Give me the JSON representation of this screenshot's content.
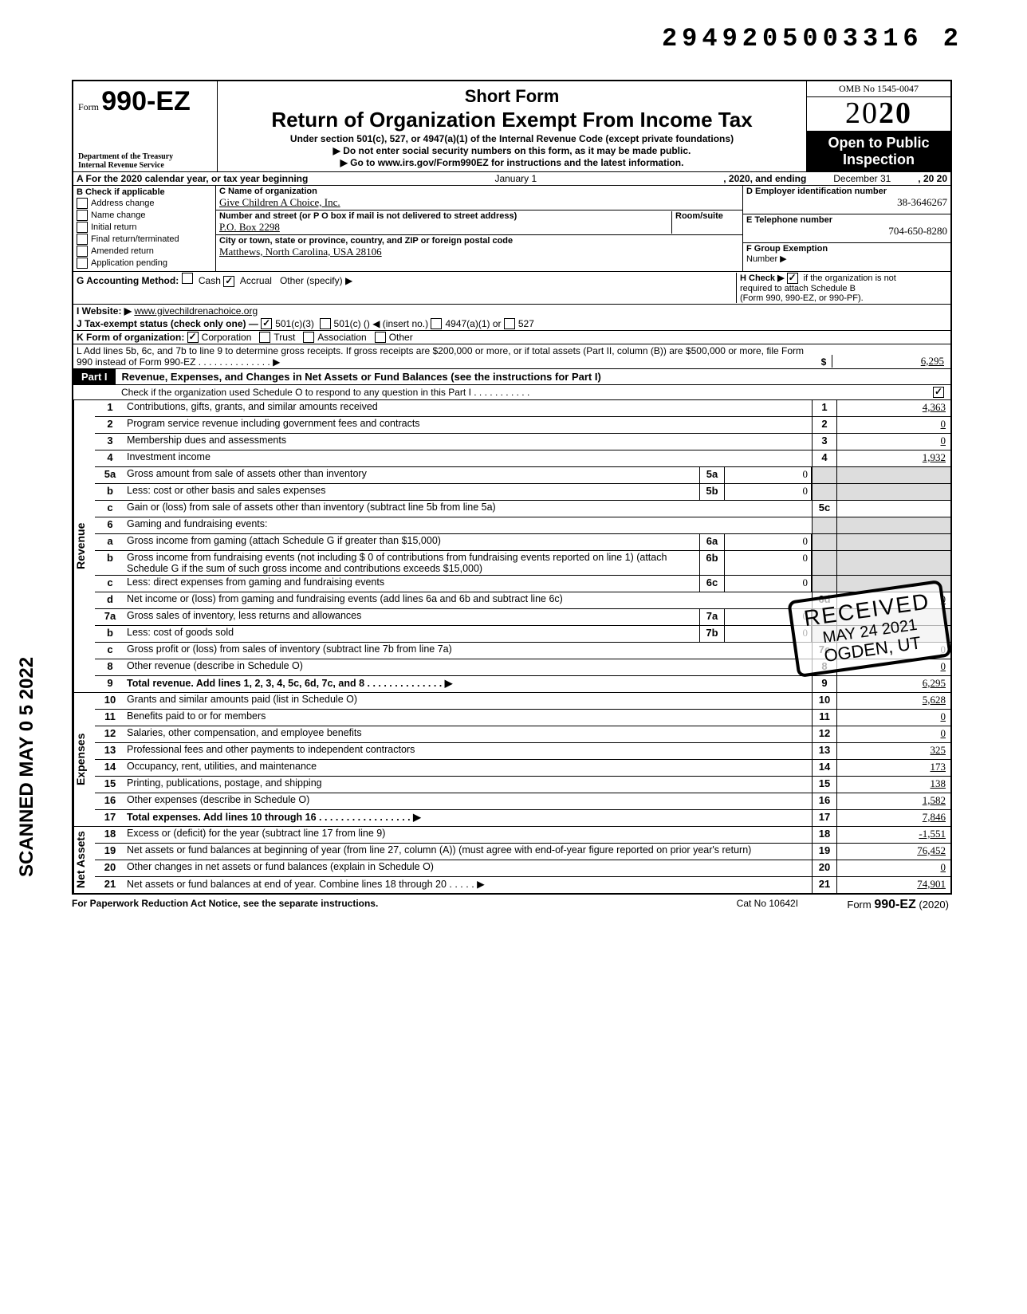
{
  "doc_number": "2949205003316  2",
  "scanned_stamp": "SCANNED MAY 0 5 2022",
  "header": {
    "form_prefix": "Form",
    "form_number": "990-EZ",
    "dept1": "Department of the Treasury",
    "dept2": "Internal Revenue Service",
    "short_form": "Short Form",
    "title": "Return of Organization Exempt From Income Tax",
    "subtitle": "Under section 501(c), 527, or 4947(a)(1) of the Internal Revenue Code (except private foundations)",
    "instr1": "▶ Do not enter social security numbers on this form, as it may be made public.",
    "instr2": "▶ Go to www.irs.gov/Form990EZ for instructions and the latest information.",
    "omb": "OMB No  1545-0047",
    "year_prefix": "20",
    "year_bold": "20",
    "open_public1": "Open to Public",
    "open_public2": "Inspection"
  },
  "rowA": {
    "label_pre": "A  For the 2020 calendar year, or tax year beginning",
    "begin": "January 1",
    "mid": ", 2020, and ending",
    "end": "December 31",
    "tail": ", 20   20"
  },
  "rowB": {
    "header": "B  Check if applicable",
    "opts": [
      "Address change",
      "Name change",
      "Initial return",
      "Final return/terminated",
      "Amended return",
      "Application pending"
    ]
  },
  "rowC": {
    "name_label": "C  Name of organization",
    "name": "Give Children A Choice, Inc.",
    "addr_label": "Number and street (or P O  box if mail is not delivered to street address)",
    "room_label": "Room/suite",
    "addr": "P.O. Box 2298",
    "city_label": "City or town, state or province, country, and ZIP or foreign postal code",
    "city": "Matthews, North Carolina, USA 28106"
  },
  "rowD": {
    "label": "D Employer identification number",
    "value": "38-3646267"
  },
  "rowE": {
    "label": "E  Telephone number",
    "value": "704-650-8280"
  },
  "rowF": {
    "label": "F  Group Exemption",
    "label2": "Number ▶"
  },
  "rowG": {
    "label": "G  Accounting Method:",
    "cash": "Cash",
    "accrual": "Accrual",
    "other": "Other (specify) ▶"
  },
  "rowH": {
    "text1": "H  Check ▶",
    "text2": "if the organization is not",
    "text3": "required to attach Schedule B",
    "text4": "(Form 990, 990-EZ, or 990-PF)."
  },
  "rowI": {
    "label": "I   Website: ▶",
    "value": "www.givechildrenachoice.org"
  },
  "rowJ": {
    "label": "J  Tax-exempt status (check only one) —",
    "o1": "501(c)(3)",
    "o2": "501(c) (",
    "o2b": ") ◀ (insert no.)",
    "o3": "4947(a)(1) or",
    "o4": "527"
  },
  "rowK": {
    "label": "K  Form of organization:",
    "o1": "Corporation",
    "o2": "Trust",
    "o3": "Association",
    "o4": "Other"
  },
  "rowL": {
    "text": "L  Add lines 5b, 6c, and 7b to line 9 to determine gross receipts. If gross receipts are $200,000 or more, or if total assets (Part II, column (B)) are $500,000 or more, file Form 990 instead of Form 990-EZ .  .  .  .  .  .  .  .  .  .  .  .  .  .  ▶",
    "dollar": "$",
    "value": "6,295"
  },
  "partI": {
    "label": "Part I",
    "title": "Revenue, Expenses, and Changes in Net Assets or Fund Balances (see the instructions for Part I)",
    "subtitle": "Check if the organization used Schedule O to respond to any question in this Part I  .   .   .   .   .   .   .   .   .   .   .",
    "checked": "✓"
  },
  "sections": {
    "revenue": "Revenue",
    "expenses": "Expenses",
    "netassets": "Net Assets"
  },
  "lines": [
    {
      "n": "1",
      "d": "Contributions, gifts, grants, and similar amounts received",
      "rn": "1",
      "rv": "4,363"
    },
    {
      "n": "2",
      "d": "Program service revenue including government fees and contracts",
      "rn": "2",
      "rv": "0"
    },
    {
      "n": "3",
      "d": "Membership dues and assessments",
      "rn": "3",
      "rv": "0"
    },
    {
      "n": "4",
      "d": "Investment income",
      "rn": "4",
      "rv": "1,932"
    },
    {
      "n": "5a",
      "d": "Gross amount from sale of assets other than inventory",
      "mn": "5a",
      "mv": "0"
    },
    {
      "n": "b",
      "d": "Less: cost or other basis and sales expenses",
      "mn": "5b",
      "mv": "0"
    },
    {
      "n": "c",
      "d": "Gain or (loss) from sale of assets other than inventory (subtract line 5b from line 5a)",
      "rn": "5c",
      "rv": ""
    },
    {
      "n": "6",
      "d": "Gaming and fundraising events:"
    },
    {
      "n": "a",
      "d": "Gross income from gaming (attach Schedule G if greater than $15,000)",
      "mn": "6a",
      "mv": "0"
    },
    {
      "n": "b",
      "d": "Gross income from fundraising events (not including  $              0  of contributions from fundraising events reported on line 1) (attach Schedule G if the sum of such gross income and contributions exceeds $15,000)",
      "mn": "6b",
      "mv": "0"
    },
    {
      "n": "c",
      "d": "Less: direct expenses from gaming and fundraising events",
      "mn": "6c",
      "mv": "0"
    },
    {
      "n": "d",
      "d": "Net income or (loss) from gaming and fundraising events (add lines 6a and 6b and subtract line 6c)",
      "rn": "6d",
      "rv": "0"
    },
    {
      "n": "7a",
      "d": "Gross sales of inventory, less returns and allowances",
      "mn": "7a",
      "mv": "0"
    },
    {
      "n": "b",
      "d": "Less: cost of goods sold",
      "mn": "7b",
      "mv": "0"
    },
    {
      "n": "c",
      "d": "Gross profit or (loss) from sales of inventory (subtract line 7b from line 7a)",
      "rn": "7c",
      "rv": "0"
    },
    {
      "n": "8",
      "d": "Other revenue (describe in Schedule O)",
      "rn": "8",
      "rv": "0"
    },
    {
      "n": "9",
      "d": "Total revenue. Add lines 1, 2, 3, 4, 5c, 6d, 7c, and 8   .   .   .   .   .   .   .   .   .   .   .   .   .   .   ▶",
      "rn": "9",
      "rv": "6,295",
      "bold": true
    }
  ],
  "expense_lines": [
    {
      "n": "10",
      "d": "Grants and similar amounts paid (list in Schedule O)",
      "rn": "10",
      "rv": "5,628"
    },
    {
      "n": "11",
      "d": "Benefits paid to or for members",
      "rn": "11",
      "rv": "0"
    },
    {
      "n": "12",
      "d": "Salaries, other compensation, and employee benefits",
      "rn": "12",
      "rv": "0"
    },
    {
      "n": "13",
      "d": "Professional fees and other payments to independent contractors",
      "rn": "13",
      "rv": "325"
    },
    {
      "n": "14",
      "d": "Occupancy, rent, utilities, and maintenance",
      "rn": "14",
      "rv": "173"
    },
    {
      "n": "15",
      "d": "Printing, publications, postage, and shipping",
      "rn": "15",
      "rv": "138"
    },
    {
      "n": "16",
      "d": "Other expenses (describe in Schedule O)",
      "rn": "16",
      "rv": "1,582"
    },
    {
      "n": "17",
      "d": "Total expenses. Add lines 10 through 16  .   .   .   .   .   .   .   .   .   .   .   .   .   .   .   .   .   ▶",
      "rn": "17",
      "rv": "7,846",
      "bold": true
    }
  ],
  "netasset_lines": [
    {
      "n": "18",
      "d": "Excess or (deficit) for the year (subtract line 17 from line 9)",
      "rn": "18",
      "rv": "-1,551"
    },
    {
      "n": "19",
      "d": "Net assets or fund balances at beginning of year (from line 27, column (A)) (must agree with end-of-year figure reported on prior year's return)",
      "rn": "19",
      "rv": "76,452"
    },
    {
      "n": "20",
      "d": "Other changes in net assets or fund balances (explain in Schedule O)",
      "rn": "20",
      "rv": "0"
    },
    {
      "n": "21",
      "d": "Net assets or fund balances at end of year. Combine lines 18 through 20   .   .   .   .   .   ▶",
      "rn": "21",
      "rv": "74,901"
    }
  ],
  "footer": {
    "left": "For Paperwork Reduction Act Notice, see the separate instructions.",
    "mid": "Cat  No  10642I",
    "right_pre": "Form ",
    "right_form": "990-EZ",
    "right_post": " (2020)"
  },
  "stamp": {
    "r1": "RECEIVED",
    "r2": "MAY 24 2021",
    "r3": "OGDEN, UT"
  }
}
